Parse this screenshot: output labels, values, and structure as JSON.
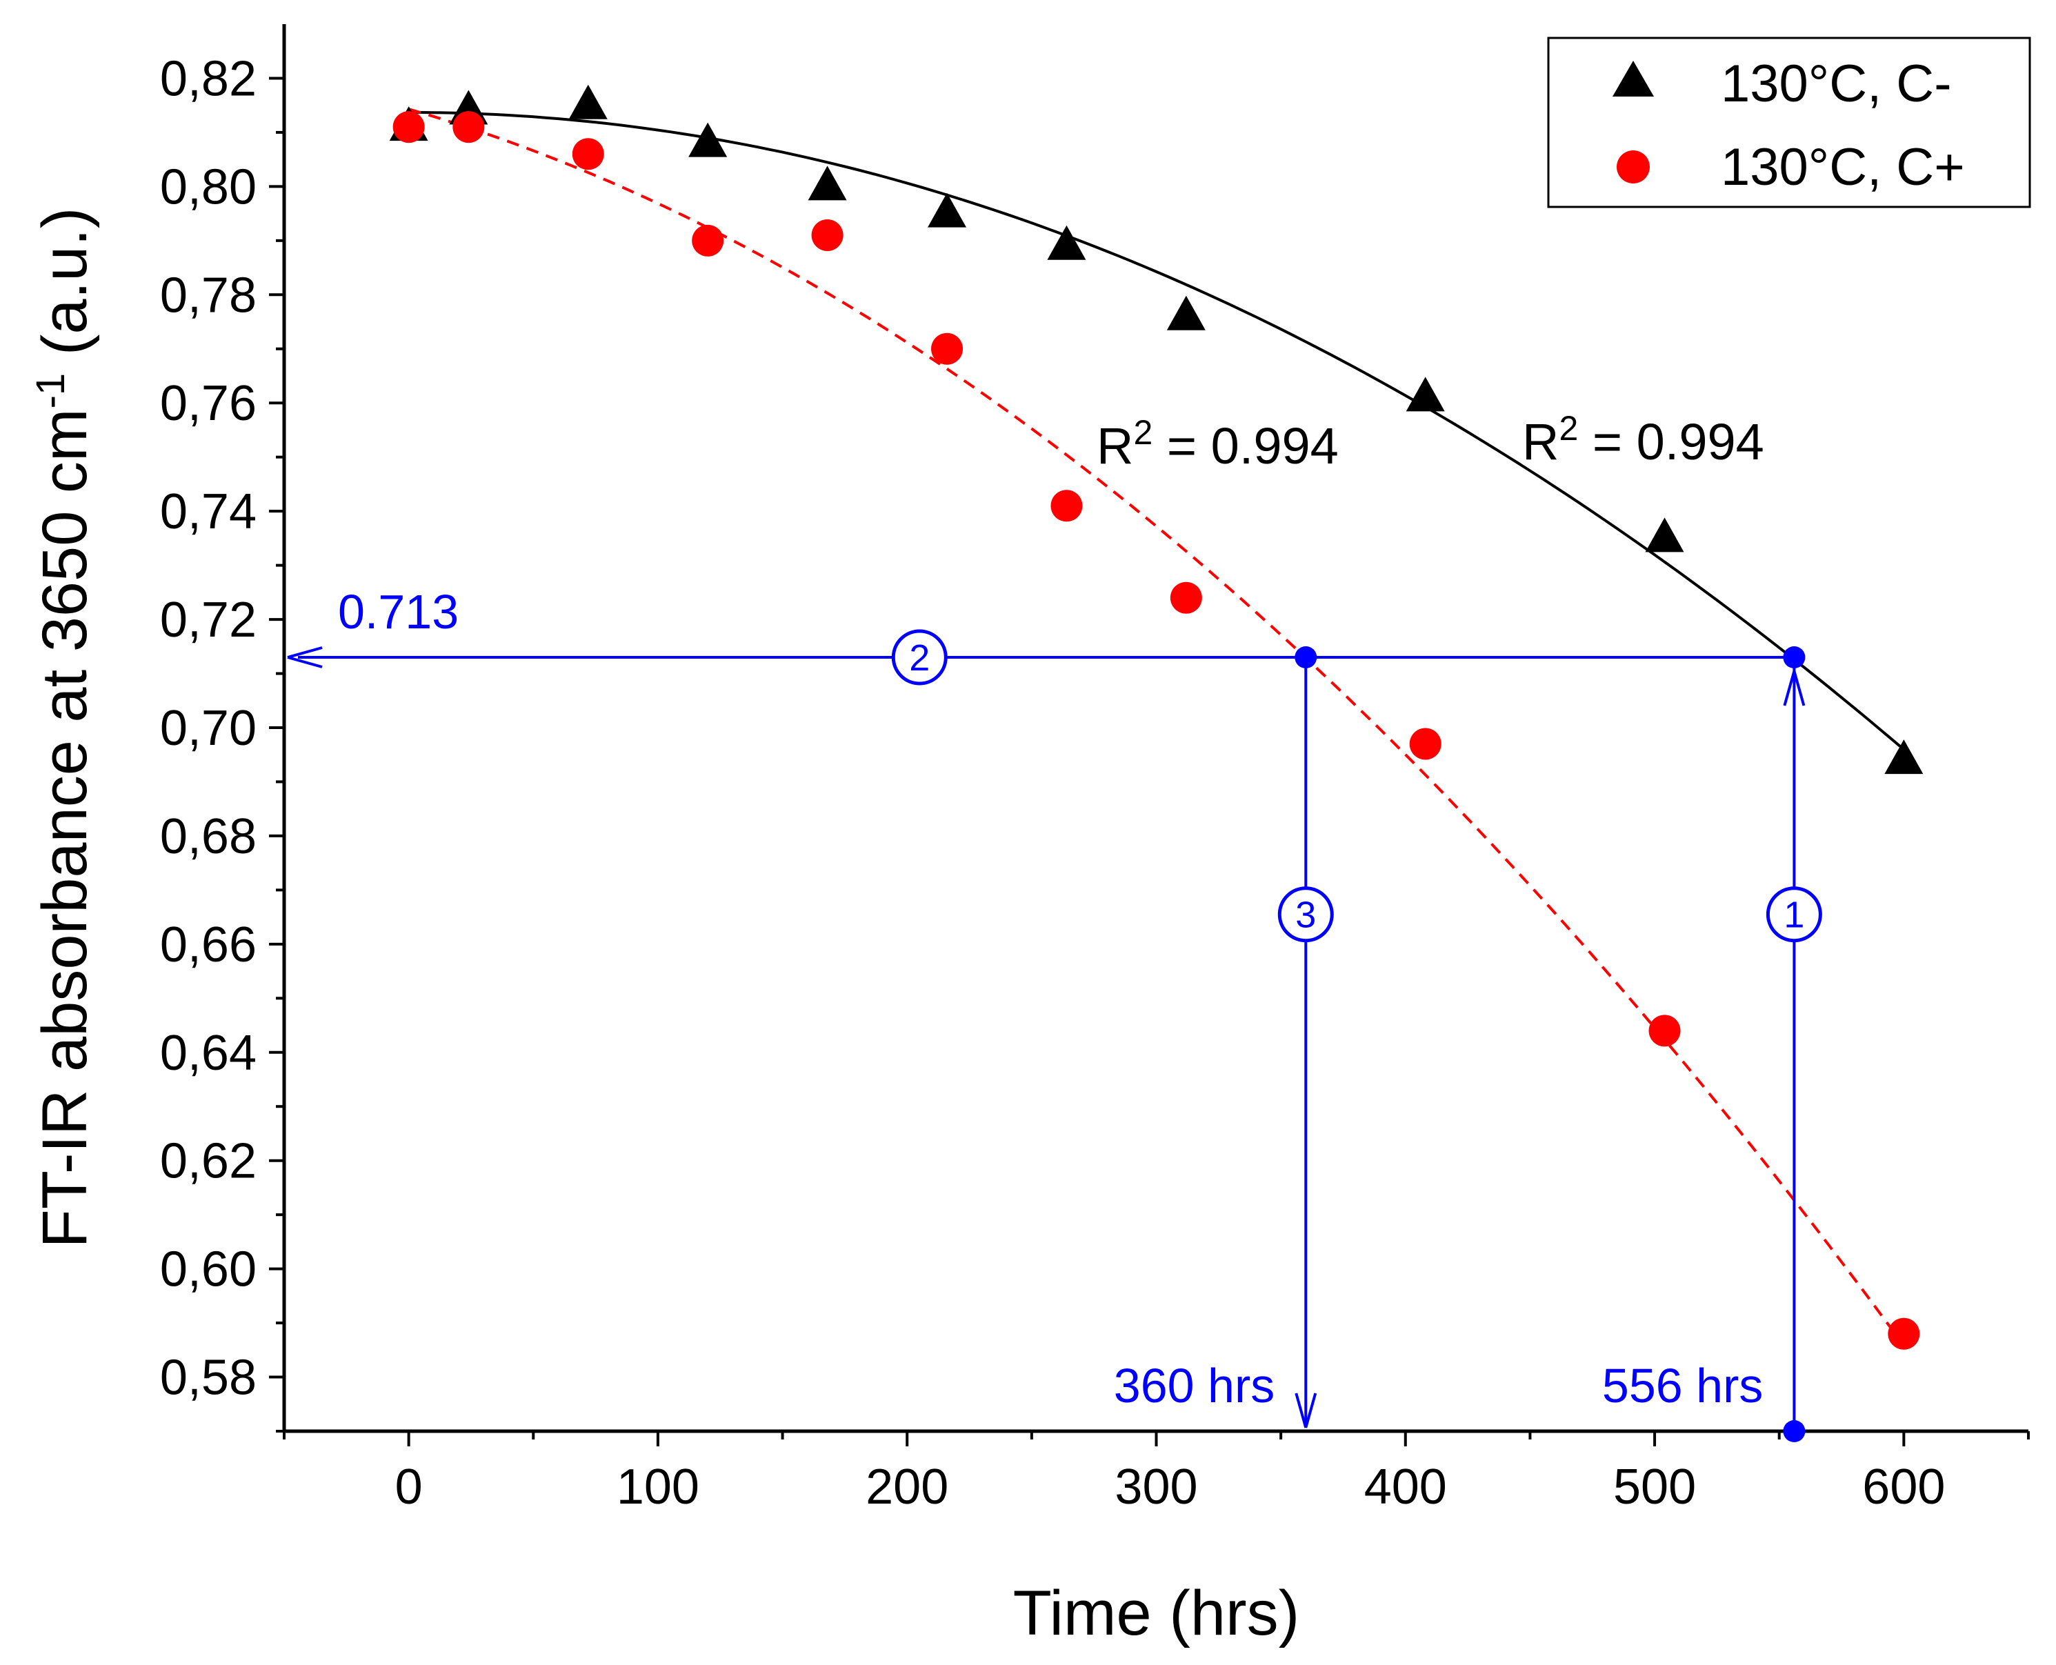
{
  "chart_data": {
    "type": "scatter",
    "xlabel": "Time (hrs)",
    "ylabel": "FT-IR absorbance at 3650 cm",
    "ylabel_sup": "-1",
    "ylabel_suffix": " (a.u.)",
    "xlim": [
      -50,
      650
    ],
    "ylim": [
      0.57,
      0.83
    ],
    "xticks": [
      0,
      100,
      200,
      300,
      400,
      500,
      600
    ],
    "xtick_labels": [
      "0",
      "100",
      "200",
      "300",
      "400",
      "500",
      "600"
    ],
    "yticks": [
      0.58,
      0.6,
      0.62,
      0.64,
      0.66,
      0.68,
      0.7,
      0.72,
      0.74,
      0.76,
      0.78,
      0.8,
      0.82
    ],
    "ytick_labels": [
      "0,58",
      "0,60",
      "0,62",
      "0,64",
      "0,66",
      "0,68",
      "0,70",
      "0,72",
      "0,74",
      "0,76",
      "0,78",
      "0,80",
      "0,82"
    ],
    "legend_position": "top-right",
    "series": [
      {
        "name": "130°C, C-",
        "marker": "triangle",
        "color": "#000000",
        "x": [
          0,
          24,
          72,
          120,
          168,
          216,
          264,
          312,
          408,
          504,
          600
        ],
        "y": [
          0.811,
          0.814,
          0.815,
          0.808,
          0.8,
          0.795,
          0.789,
          0.776,
          0.761,
          0.735,
          0.694
        ],
        "fit": {
          "style": "solid",
          "x_range": [
            0,
            600
          ],
          "coeffs": [
            0.8137,
            -2e-08,
            -3.27e-07
          ]
        },
        "r2_label": "R",
        "r2_sup": "2",
        "r2_value": " = 0.994"
      },
      {
        "name": "130°C, C+",
        "marker": "circle",
        "color": "#ff0000",
        "x": [
          0,
          24,
          72,
          120,
          168,
          216,
          264,
          312,
          408,
          504,
          600
        ],
        "y": [
          0.811,
          0.811,
          0.806,
          0.79,
          0.791,
          0.77,
          0.741,
          0.724,
          0.697,
          0.644,
          0.588
        ],
        "fit": {
          "style": "dashed",
          "x_range": [
            0,
            600
          ],
          "coeffs": [
            0.8143,
            -0.000133,
            -4.13e-07
          ]
        },
        "r2_label": "R",
        "r2_sup": "2",
        "r2_value": " = 0.994"
      }
    ],
    "annotations": {
      "color": "#0000ff",
      "threshold_value": 0.713,
      "threshold_label": "0.713",
      "time_cminus": 556,
      "time_cminus_label": "556 hrs",
      "time_cplus": 360,
      "time_cplus_label": "360 hrs",
      "step_labels": [
        "1",
        "2",
        "3"
      ]
    }
  }
}
